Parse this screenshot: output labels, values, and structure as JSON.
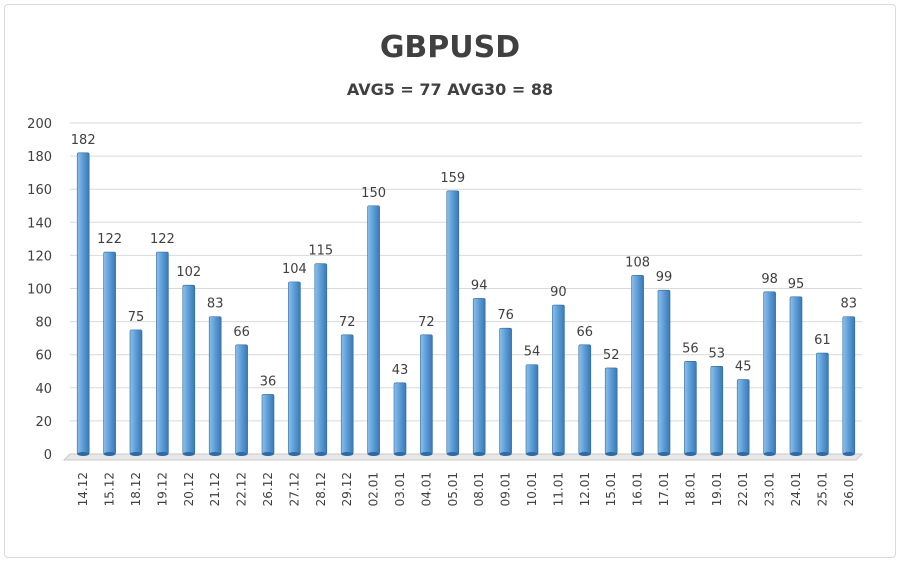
{
  "chart_data": {
    "type": "bar",
    "title": "GBPUSD",
    "subtitle": "AVG5 = 77 AVG30 = 88",
    "xlabel": "",
    "ylabel": "",
    "ylim": [
      0,
      200
    ],
    "yticks": [
      0,
      20,
      40,
      60,
      80,
      100,
      120,
      140,
      160,
      180,
      200
    ],
    "grid": true,
    "legend": "none",
    "bar_color": "#5b9bd5",
    "categories": [
      "14.12",
      "15.12",
      "18.12",
      "19.12",
      "20.12",
      "21.12",
      "22.12",
      "26.12",
      "27.12",
      "28.12",
      "29.12",
      "02.01",
      "03.01",
      "04.01",
      "05.01",
      "08.01",
      "09.01",
      "10.01",
      "11.01",
      "12.01",
      "15.01",
      "16.01",
      "17.01",
      "18.01",
      "19.01",
      "22.01",
      "23.01",
      "24.01",
      "25.01",
      "26.01"
    ],
    "values": [
      182,
      122,
      75,
      122,
      102,
      83,
      66,
      36,
      104,
      115,
      72,
      150,
      43,
      72,
      159,
      94,
      76,
      54,
      90,
      66,
      52,
      108,
      99,
      56,
      53,
      45,
      98,
      95,
      61,
      83
    ]
  }
}
